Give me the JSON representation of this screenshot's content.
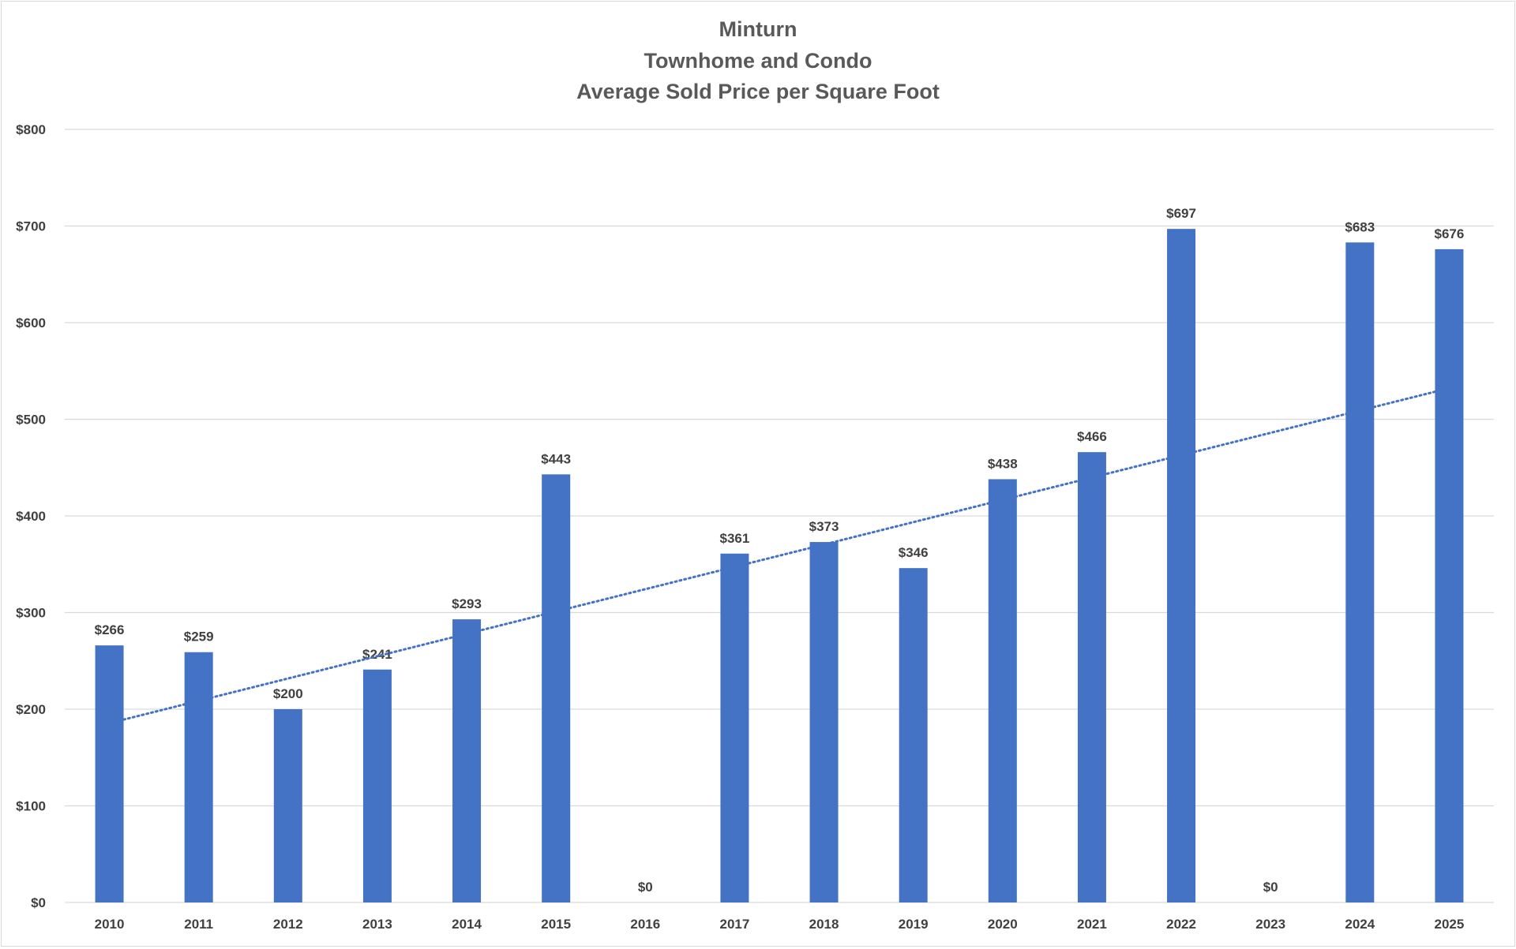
{
  "chart_data": {
    "type": "bar",
    "title": [
      "Minturn",
      "Townhome and Condo",
      "Average Sold Price per Square Foot"
    ],
    "xlabel": "",
    "ylabel": "",
    "categories": [
      "2010",
      "2011",
      "2012",
      "2013",
      "2014",
      "2015",
      "2016",
      "2017",
      "2018",
      "2019",
      "2020",
      "2021",
      "2022",
      "2023",
      "2024",
      "2025"
    ],
    "values": [
      266,
      259,
      200,
      241,
      293,
      443,
      0,
      361,
      373,
      346,
      438,
      466,
      697,
      0,
      683,
      676
    ],
    "data_labels": [
      "$266",
      "$259",
      "$200",
      "$241",
      "$293",
      "$443",
      "$0",
      "$361",
      "$373",
      "$346",
      "$438",
      "$466",
      "$697",
      "$0",
      "$683",
      "$676"
    ],
    "ylim": [
      0,
      800
    ],
    "yticks": [
      0,
      100,
      200,
      300,
      400,
      500,
      600,
      700,
      800
    ],
    "ytick_labels": [
      "$0",
      "$100",
      "$200",
      "$300",
      "$400",
      "$500",
      "$600",
      "$700",
      "$800"
    ],
    "grid": true,
    "legend": "none",
    "trendline": {
      "type": "linear",
      "style": "dotted"
    },
    "colors": {
      "bar": "#4472C4",
      "trendline": "#4472C4",
      "grid": "#d9d9d9",
      "text": "#404040"
    }
  }
}
